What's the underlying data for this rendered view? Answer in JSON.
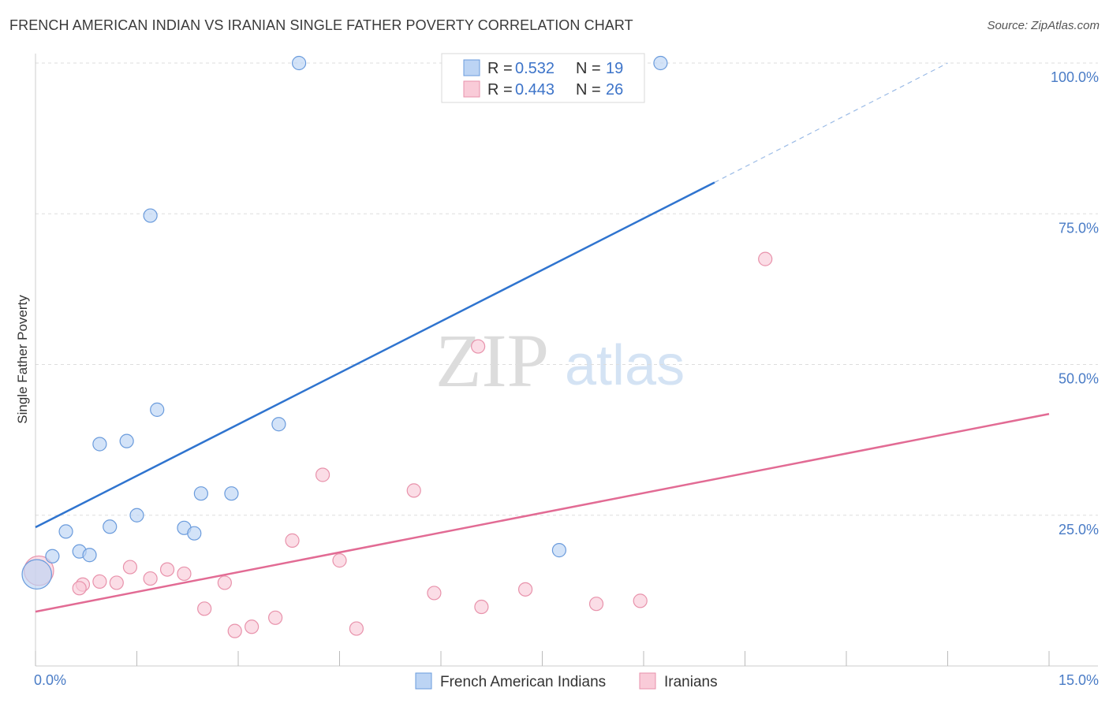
{
  "title": "FRENCH AMERICAN INDIAN VS IRANIAN SINGLE FATHER POVERTY CORRELATION CHART",
  "source": "Source: ZipAtlas.com",
  "watermark": {
    "zip": "ZIP",
    "atlas": "atlas"
  },
  "colors": {
    "series_a_fill": "#bcd4f4",
    "series_a_stroke": "#6a9bdc",
    "series_a_line": "#2f74cf",
    "series_b_fill": "#f9cbd8",
    "series_b_stroke": "#e892ab",
    "series_b_line": "#e26b94",
    "tick_text": "#4a7cc6",
    "grid": "#dddddd"
  },
  "legend": {
    "rows": [
      {
        "r_label": "R =",
        "r_value": "0.532",
        "n_label": "N =",
        "n_value": "19"
      },
      {
        "r_label": "R =",
        "r_value": "0.443",
        "n_label": "N =",
        "n_value": "26"
      }
    ]
  },
  "chart_data": {
    "type": "scatter",
    "title": "FRENCH AMERICAN INDIAN VS IRANIAN SINGLE FATHER POVERTY CORRELATION CHART",
    "xlabel": "",
    "ylabel": "Single Father Poverty",
    "xlim": [
      0,
      15
    ],
    "ylim": [
      0,
      100
    ],
    "x_tick_labels": [
      "0.0%",
      "15.0%"
    ],
    "y_ticks": [
      25,
      50,
      75,
      100
    ],
    "y_tick_labels": [
      "25.0%",
      "50.0%",
      "75.0%",
      "100.0%"
    ],
    "legend_position": "top-center",
    "series": [
      {
        "name": "French American Indians",
        "r": 0.532,
        "n": 19,
        "points": [
          [
            0.02,
            15.2,
            2.2
          ],
          [
            0.25,
            18.2,
            1
          ],
          [
            0.45,
            22.3,
            1
          ],
          [
            0.65,
            19.0,
            1
          ],
          [
            0.8,
            18.4,
            1
          ],
          [
            0.95,
            36.8,
            1
          ],
          [
            1.1,
            23.1,
            1
          ],
          [
            1.35,
            37.3,
            1
          ],
          [
            1.5,
            25.0,
            1
          ],
          [
            1.7,
            74.7,
            1
          ],
          [
            1.8,
            42.5,
            1
          ],
          [
            2.2,
            22.9,
            1
          ],
          [
            2.35,
            22.0,
            1
          ],
          [
            2.45,
            28.6,
            1
          ],
          [
            2.9,
            28.6,
            1
          ],
          [
            3.6,
            40.1,
            1
          ],
          [
            3.9,
            100.0,
            1
          ],
          [
            7.75,
            19.2,
            1
          ],
          [
            9.25,
            100.0,
            1
          ]
        ],
        "trend": {
          "x0": 0,
          "y0": 23.0,
          "x1": 10.05,
          "y1": 80.2,
          "dash_to_x": 13.5,
          "dash_to_y": 100.0
        }
      },
      {
        "name": "Iranians",
        "r": 0.443,
        "n": 26,
        "points": [
          [
            0.05,
            15.8,
            2.2
          ],
          [
            0.7,
            13.5,
            1
          ],
          [
            0.65,
            12.9,
            1
          ],
          [
            0.95,
            14.0,
            1
          ],
          [
            1.2,
            13.8,
            1
          ],
          [
            1.4,
            16.4,
            1
          ],
          [
            1.7,
            14.5,
            1
          ],
          [
            1.95,
            16.0,
            1
          ],
          [
            2.2,
            15.3,
            1
          ],
          [
            2.5,
            9.5,
            1
          ],
          [
            2.8,
            13.8,
            1
          ],
          [
            2.95,
            5.8,
            1
          ],
          [
            3.2,
            6.5,
            1
          ],
          [
            3.55,
            8.0,
            1
          ],
          [
            3.8,
            20.8,
            1
          ],
          [
            4.25,
            31.7,
            1
          ],
          [
            4.5,
            17.5,
            1
          ],
          [
            4.75,
            6.2,
            1
          ],
          [
            5.6,
            29.1,
            1
          ],
          [
            5.9,
            12.1,
            1
          ],
          [
            6.55,
            53.0,
            1
          ],
          [
            6.6,
            9.8,
            1
          ],
          [
            7.25,
            12.7,
            1
          ],
          [
            8.3,
            10.3,
            1
          ],
          [
            8.95,
            10.8,
            1
          ],
          [
            10.8,
            67.5,
            1
          ]
        ],
        "trend": {
          "x0": 0,
          "y0": 9.0,
          "x1": 15,
          "y1": 41.8
        }
      }
    ]
  }
}
